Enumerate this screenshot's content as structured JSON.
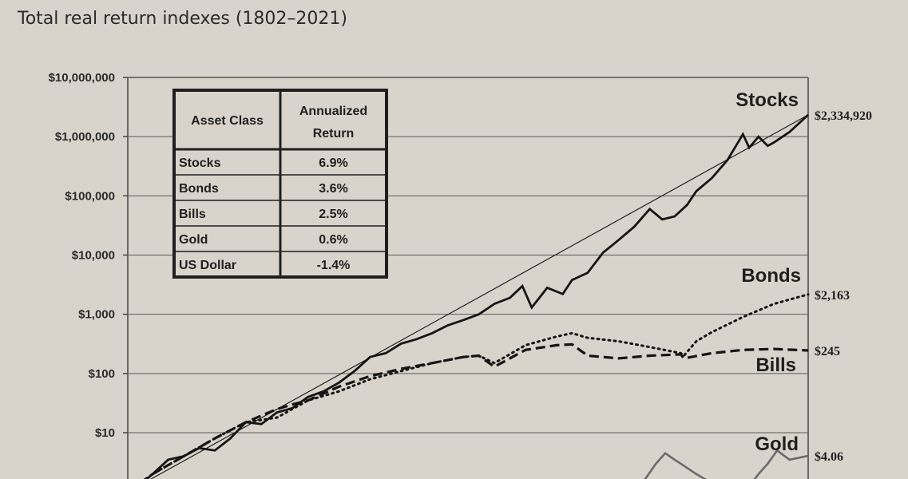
{
  "chart_data": {
    "type": "line",
    "title": "Total real return indexes (1802–2021)",
    "yscale": "log",
    "ylim": [
      1,
      10000000
    ],
    "y_ticks": [
      "$10,000,000",
      "$1,000,000",
      "$100,000",
      "$10,000",
      "$1,000",
      "$100",
      "$10"
    ],
    "y_tick_values": [
      10000000,
      1000000,
      100000,
      10000,
      1000,
      100,
      10
    ],
    "xlim": [
      1802,
      2021
    ],
    "grid": true,
    "series": [
      {
        "name": "Stocks",
        "style": "solid",
        "end_label": "$2,334,920",
        "x": [
          1802,
          1805,
          1810,
          1815,
          1820,
          1825,
          1830,
          1835,
          1840,
          1845,
          1850,
          1855,
          1860,
          1865,
          1870,
          1875,
          1880,
          1885,
          1890,
          1895,
          1900,
          1905,
          1910,
          1915,
          1920,
          1925,
          1929,
          1932,
          1937,
          1942,
          1945,
          1950,
          1955,
          1960,
          1965,
          1970,
          1974,
          1978,
          1982,
          1985,
          1990,
          1995,
          2000,
          2002,
          2005,
          2008,
          2010,
          2015,
          2021
        ],
        "y": [
          1,
          1.2,
          2,
          3.5,
          4,
          5.5,
          5,
          8,
          15,
          14,
          22,
          26,
          40,
          50,
          70,
          110,
          190,
          220,
          320,
          380,
          480,
          650,
          800,
          1000,
          1500,
          1900,
          3000,
          1300,
          2800,
          2200,
          3800,
          5000,
          11000,
          18000,
          30000,
          60000,
          40000,
          45000,
          70000,
          120000,
          200000,
          400000,
          1100000,
          650000,
          1000000,
          700000,
          800000,
          1200000,
          2334920
        ]
      },
      {
        "name": "Bonds",
        "style": "dotted",
        "end_label": "$2,163",
        "x": [
          1802,
          1810,
          1820,
          1830,
          1840,
          1850,
          1860,
          1870,
          1880,
          1890,
          1900,
          1910,
          1915,
          1920,
          1930,
          1940,
          1945,
          1950,
          1960,
          1970,
          1980,
          1981,
          1985,
          1990,
          2000,
          2010,
          2021
        ],
        "y": [
          1,
          2,
          4,
          8,
          15,
          18,
          35,
          50,
          80,
          110,
          150,
          190,
          200,
          150,
          300,
          420,
          480,
          400,
          350,
          280,
          220,
          200,
          350,
          500,
          900,
          1500,
          2163
        ]
      },
      {
        "name": "Bills",
        "style": "dashed",
        "end_label": "$245",
        "x": [
          1802,
          1810,
          1820,
          1830,
          1840,
          1850,
          1855,
          1860,
          1870,
          1880,
          1890,
          1900,
          1910,
          1915,
          1920,
          1930,
          1940,
          1945,
          1950,
          1960,
          1970,
          1980,
          1981,
          1990,
          2000,
          2010,
          2021
        ],
        "y": [
          1,
          2,
          4,
          8,
          15,
          25,
          30,
          35,
          60,
          90,
          120,
          150,
          190,
          200,
          130,
          250,
          300,
          310,
          200,
          180,
          200,
          210,
          180,
          220,
          250,
          260,
          245
        ]
      },
      {
        "name": "Gold",
        "style": "solid-gray",
        "end_label": "$4.06",
        "x": [
          1802,
          1930,
          1940,
          1960,
          1968,
          1972,
          1975,
          1978,
          1980,
          1985,
          1990,
          1995,
          2000,
          2005,
          2008,
          2011,
          2015,
          2021
        ],
        "y": [
          1,
          1,
          1,
          1,
          1.5,
          3,
          4.5,
          3.5,
          3,
          2,
          1.4,
          1.1,
          0.9,
          2,
          3,
          5,
          3.5,
          4.06
        ]
      }
    ],
    "table": {
      "headers": [
        "Asset Class",
        "Annualized Return"
      ],
      "rows": [
        [
          "Stocks",
          "6.9%"
        ],
        [
          "Bonds",
          "3.6%"
        ],
        [
          "Bills",
          "2.5%"
        ],
        [
          "Gold",
          "0.6%"
        ],
        [
          "US Dollar",
          "-1.4%"
        ]
      ]
    }
  }
}
